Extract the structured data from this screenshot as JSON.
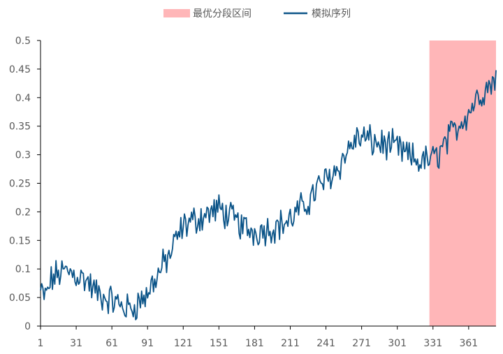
{
  "chart_data": {
    "type": "line",
    "title": "",
    "xlabel": "",
    "ylabel": "",
    "xlim": [
      1,
      384
    ],
    "ylim": [
      0,
      0.5
    ],
    "x_ticks": [
      "1",
      "31",
      "61",
      "91",
      "121",
      "151",
      "181",
      "211",
      "241",
      "271",
      "301",
      "331",
      "361"
    ],
    "y_ticks": [
      "0",
      "0.05",
      "0.1",
      "0.15",
      "0.2",
      "0.25",
      "0.3",
      "0.35",
      "0.4",
      "0.45",
      "0.5"
    ],
    "grid": false,
    "legend_position": "top",
    "highlight_range": {
      "name": "最优分段区间",
      "x_start": 328,
      "x_end": 384,
      "color": "#FFB6B8"
    },
    "series": [
      {
        "name": "模拟序列",
        "color": "#0B5488",
        "anchors": [
          [
            1,
            0.06
          ],
          [
            5,
            0.05
          ],
          [
            10,
            0.08
          ],
          [
            15,
            0.09
          ],
          [
            20,
            0.095
          ],
          [
            25,
            0.095
          ],
          [
            31,
            0.09
          ],
          [
            35,
            0.085
          ],
          [
            40,
            0.08
          ],
          [
            45,
            0.065
          ],
          [
            50,
            0.055
          ],
          [
            55,
            0.05
          ],
          [
            61,
            0.045
          ],
          [
            65,
            0.04
          ],
          [
            70,
            0.035
          ],
          [
            75,
            0.03
          ],
          [
            80,
            0.035
          ],
          [
            85,
            0.045
          ],
          [
            91,
            0.055
          ],
          [
            95,
            0.075
          ],
          [
            100,
            0.09
          ],
          [
            105,
            0.11
          ],
          [
            110,
            0.125
          ],
          [
            115,
            0.15
          ],
          [
            121,
            0.175
          ],
          [
            125,
            0.18
          ],
          [
            130,
            0.185
          ],
          [
            135,
            0.19
          ],
          [
            140,
            0.195
          ],
          [
            145,
            0.2
          ],
          [
            151,
            0.205
          ],
          [
            155,
            0.2
          ],
          [
            160,
            0.19
          ],
          [
            165,
            0.185
          ],
          [
            170,
            0.175
          ],
          [
            175,
            0.17
          ],
          [
            181,
            0.165
          ],
          [
            185,
            0.168
          ],
          [
            190,
            0.17
          ],
          [
            195,
            0.172
          ],
          [
            200,
            0.175
          ],
          [
            205,
            0.18
          ],
          [
            211,
            0.185
          ],
          [
            215,
            0.195
          ],
          [
            220,
            0.205
          ],
          [
            225,
            0.215
          ],
          [
            230,
            0.23
          ],
          [
            235,
            0.245
          ],
          [
            241,
            0.255
          ],
          [
            245,
            0.265
          ],
          [
            250,
            0.275
          ],
          [
            255,
            0.29
          ],
          [
            260,
            0.31
          ],
          [
            265,
            0.325
          ],
          [
            271,
            0.33
          ],
          [
            275,
            0.328
          ],
          [
            280,
            0.322
          ],
          [
            285,
            0.32
          ],
          [
            290,
            0.318
          ],
          [
            295,
            0.315
          ],
          [
            301,
            0.312
          ],
          [
            305,
            0.305
          ],
          [
            310,
            0.298
          ],
          [
            315,
            0.292
          ],
          [
            320,
            0.288
          ],
          [
            325,
            0.29
          ],
          [
            331,
            0.292
          ],
          [
            335,
            0.3
          ],
          [
            340,
            0.315
          ],
          [
            345,
            0.33
          ],
          [
            350,
            0.345
          ],
          [
            355,
            0.36
          ],
          [
            361,
            0.375
          ],
          [
            365,
            0.39
          ],
          [
            370,
            0.405
          ],
          [
            375,
            0.415
          ],
          [
            380,
            0.425
          ],
          [
            384,
            0.44
          ]
        ],
        "noise_amplitude": 0.022
      }
    ]
  },
  "legend": {
    "items": [
      {
        "label": "最优分段区间",
        "color": "#FFB6B8",
        "kind": "rect"
      },
      {
        "label": "模拟序列",
        "color": "#0B5488",
        "kind": "line"
      }
    ]
  }
}
